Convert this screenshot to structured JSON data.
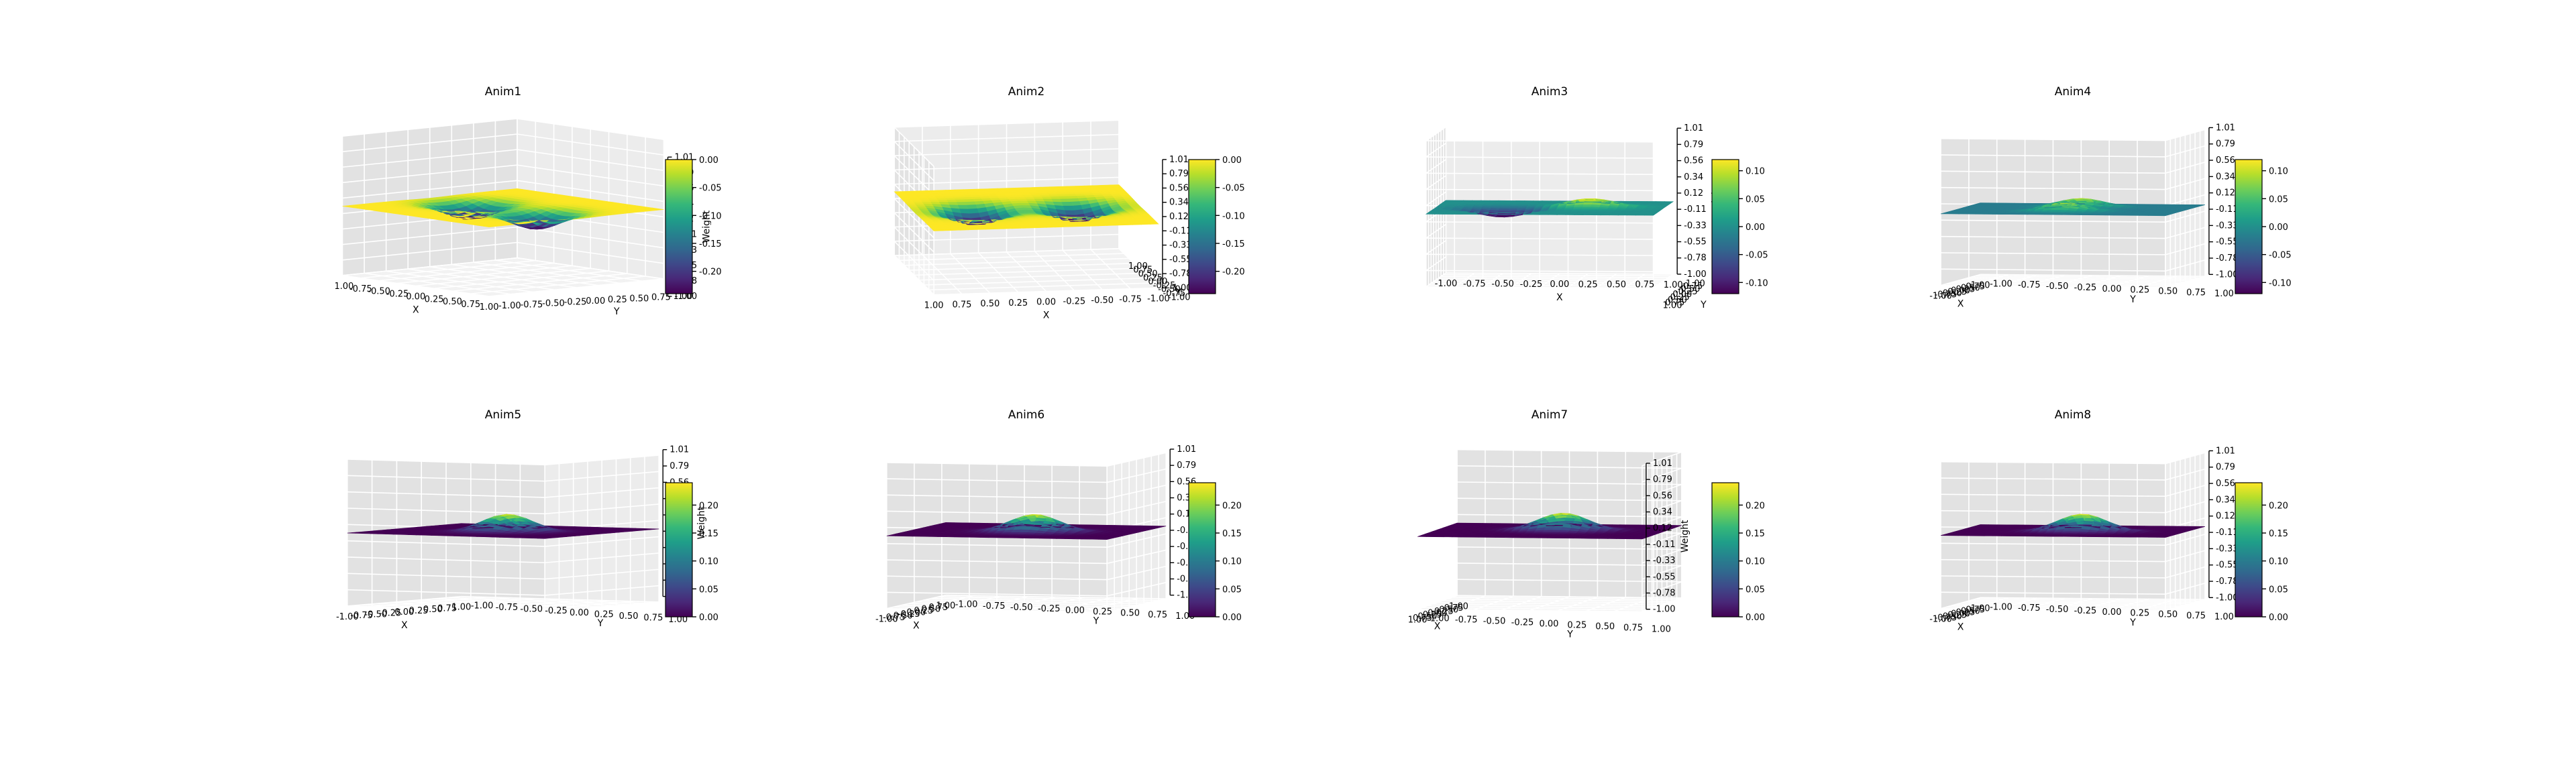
{
  "colormap": {
    "name": "viridis",
    "stops": [
      "#440154",
      "#482878",
      "#3e4989",
      "#31688e",
      "#26828e",
      "#1f9e89",
      "#35b779",
      "#6ece58",
      "#b5de2b",
      "#fde725"
    ]
  },
  "chart_data": [
    {
      "type": "surface3d",
      "title": "Anim1",
      "xlabel": "X",
      "ylabel": "Y",
      "zlabel": "Weight",
      "x_ticks": [
        "-1.00",
        "-0.75",
        "-0.50",
        "-0.25",
        "0.00",
        "0.25",
        "0.50",
        "0.75",
        "1.00"
      ],
      "y_ticks": [
        "-1.00",
        "-0.75",
        "-0.50",
        "-0.25",
        "0.00",
        "0.25",
        "0.50",
        "0.75",
        "1.00"
      ],
      "z_ticks": [
        "-1.00",
        "-0.78",
        "-0.55",
        "-0.33",
        "-0.11",
        "0.12",
        "0.34",
        "0.56",
        "0.79",
        "1.01"
      ],
      "zlim": [
        -1.0,
        1.01
      ],
      "surface": "two inverted Gaussian dips",
      "colorbar_ticks": [
        "0.00",
        "-0.05",
        "-0.10",
        "-0.15",
        "-0.20"
      ],
      "colorbar_range": [
        -0.24,
        0.0
      ]
    },
    {
      "type": "surface3d",
      "title": "Anim2",
      "xlabel": "X",
      "ylabel": "Y",
      "zlabel": "Weight",
      "x_ticks": [
        "1.00",
        "0.75",
        "0.50",
        "0.25",
        "0.00",
        "-0.25",
        "-0.50",
        "-0.75",
        "-1.00"
      ],
      "y_ticks": [
        "-1.00",
        "-0.75",
        "-0.50",
        "-0.25",
        "0.00",
        "0.25",
        "0.50",
        "0.75",
        "1.00"
      ],
      "z_ticks": [
        "-1.00",
        "-0.78",
        "-0.55",
        "-0.33",
        "-0.11",
        "0.12",
        "0.34",
        "0.56",
        "0.79",
        "1.01"
      ],
      "zlim": [
        -1.0,
        1.01
      ],
      "surface": "two inverted Gaussian dips",
      "colorbar_ticks": [
        "0.00",
        "-0.05",
        "-0.10",
        "-0.15",
        "-0.20"
      ],
      "colorbar_range": [
        -0.24,
        0.0
      ]
    },
    {
      "type": "surface3d",
      "title": "Anim3",
      "xlabel": "X",
      "ylabel": "Y",
      "zlabel": "Weight",
      "x_ticks": [
        "-1.00",
        "-0.75",
        "-0.50",
        "-0.25",
        "0.00",
        "0.25",
        "0.50",
        "0.75",
        "1.00"
      ],
      "y_ticks": [
        "-1.00",
        "-0.75",
        "-0.50",
        "-0.25",
        "0.00",
        "0.25",
        "0.50",
        "0.75",
        "1.00"
      ],
      "z_ticks": [
        "-1.00",
        "-0.78",
        "-0.55",
        "-0.33",
        "-0.11",
        "0.12",
        "0.34",
        "0.56",
        "0.79",
        "1.01"
      ],
      "zlim": [
        -1.0,
        1.01
      ],
      "surface": "one bump and one dip",
      "colorbar_ticks": [
        "0.10",
        "0.05",
        "0.00",
        "-0.05",
        "-0.10"
      ],
      "colorbar_range": [
        -0.12,
        0.12
      ]
    },
    {
      "type": "surface3d",
      "title": "Anim4",
      "xlabel": "X",
      "ylabel": "Y",
      "zlabel": "Weight",
      "x_ticks": [
        "-1.00",
        "-0.75",
        "-0.50",
        "-0.25",
        "0.00",
        "0.25",
        "0.50",
        "0.75",
        "1.00"
      ],
      "y_ticks": [
        "-1.00",
        "-0.75",
        "-0.50",
        "-0.25",
        "0.00",
        "0.25",
        "0.50",
        "0.75",
        "1.00"
      ],
      "z_ticks": [
        "-1.00",
        "-0.78",
        "-0.55",
        "-0.33",
        "-0.11",
        "0.12",
        "0.34",
        "0.56",
        "0.79",
        "1.01"
      ],
      "zlim": [
        -1.0,
        1.01
      ],
      "surface": "two small bumps",
      "colorbar_ticks": [
        "0.10",
        "0.05",
        "0.00",
        "-0.05",
        "-0.10"
      ],
      "colorbar_range": [
        -0.12,
        0.12
      ]
    },
    {
      "type": "surface3d",
      "title": "Anim5",
      "xlabel": "X",
      "ylabel": "Y",
      "zlabel": "Weight",
      "x_ticks": [
        "-1.00",
        "-0.75",
        "-0.50",
        "-0.25",
        "0.00",
        "0.25",
        "0.50",
        "0.75",
        "1.00"
      ],
      "y_ticks": [
        "-1.00",
        "-0.75",
        "-0.50",
        "-0.25",
        "0.00",
        "0.25",
        "0.50",
        "0.75",
        "1.00"
      ],
      "z_ticks": [
        "-1.00",
        "-0.78",
        "-0.55",
        "-0.33",
        "-0.11",
        "0.12",
        "0.34",
        "0.56",
        "0.79",
        "1.01"
      ],
      "zlim": [
        -1.0,
        1.01
      ],
      "surface": "single Gaussian bump",
      "colorbar_ticks": [
        "0.20",
        "0.15",
        "0.10",
        "0.05",
        "0.00"
      ],
      "colorbar_range": [
        0.0,
        0.24
      ]
    },
    {
      "type": "surface3d",
      "title": "Anim6",
      "xlabel": "X",
      "ylabel": "Y",
      "zlabel": "Weight",
      "x_ticks": [
        "-1.00",
        "-0.75",
        "-0.50",
        "-0.25",
        "0.00",
        "0.25",
        "0.50",
        "0.75",
        "1.00"
      ],
      "y_ticks": [
        "-1.00",
        "-0.75",
        "-0.50",
        "-0.25",
        "0.00",
        "0.25",
        "0.50",
        "0.75",
        "1.00"
      ],
      "z_ticks": [
        "-1.00",
        "-0.78",
        "-0.55",
        "-0.33",
        "-0.11",
        "0.12",
        "0.34",
        "0.56",
        "0.79",
        "1.01"
      ],
      "zlim": [
        -1.0,
        1.01
      ],
      "surface": "single Gaussian bump",
      "colorbar_ticks": [
        "0.20",
        "0.15",
        "0.10",
        "0.05",
        "0.00"
      ],
      "colorbar_range": [
        0.0,
        0.24
      ]
    },
    {
      "type": "surface3d",
      "title": "Anim7",
      "xlabel": "X",
      "ylabel": "Y",
      "zlabel": "Weight",
      "x_ticks": [
        "-1.00",
        "-0.75",
        "-0.50",
        "-0.25",
        "0.00",
        "0.25",
        "0.50",
        "0.75",
        "1.00"
      ],
      "y_ticks": [
        "-1.00",
        "-0.75",
        "-0.50",
        "-0.25",
        "0.00",
        "0.25",
        "0.50",
        "0.75",
        "1.00"
      ],
      "z_ticks": [
        "-1.00",
        "-0.78",
        "-0.55",
        "-0.33",
        "-0.11",
        "0.12",
        "0.34",
        "0.56",
        "0.79",
        "1.01"
      ],
      "zlim": [
        -1.0,
        1.01
      ],
      "surface": "single Gaussian bump",
      "colorbar_ticks": [
        "0.20",
        "0.15",
        "0.10",
        "0.05",
        "0.00"
      ],
      "colorbar_range": [
        0.0,
        0.24
      ]
    },
    {
      "type": "surface3d",
      "title": "Anim8",
      "xlabel": "X",
      "ylabel": "Y",
      "zlabel": "Weight",
      "x_ticks": [
        "-1.00",
        "-0.75",
        "-0.50",
        "-0.25",
        "0.00",
        "0.25",
        "0.50",
        "0.75",
        "1.00"
      ],
      "y_ticks": [
        "-1.00",
        "-0.75",
        "-0.50",
        "-0.25",
        "0.00",
        "0.25",
        "0.50",
        "0.75",
        "1.00"
      ],
      "z_ticks": [
        "-1.00",
        "-0.78",
        "-0.55",
        "-0.33",
        "-0.11",
        "0.12",
        "0.34",
        "0.56",
        "0.79",
        "1.01"
      ],
      "zlim": [
        -1.0,
        1.01
      ],
      "surface": "single Gaussian bump",
      "colorbar_ticks": [
        "0.20",
        "0.15",
        "0.10",
        "0.05",
        "0.00"
      ],
      "colorbar_range": [
        0.0,
        0.24
      ]
    }
  ]
}
